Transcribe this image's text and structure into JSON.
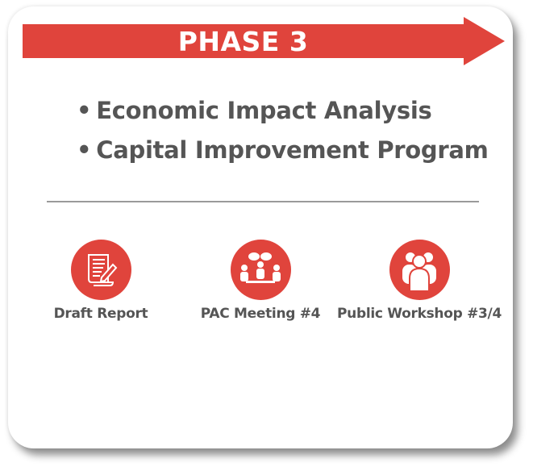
{
  "colors": {
    "accent": "#e0443c",
    "text": "#555555"
  },
  "header": {
    "title": "PHASE 3"
  },
  "bullets": [
    "Economic Impact Analysis",
    "Capital Improvement Program"
  ],
  "bullet_symbol": "•",
  "milestones": [
    {
      "label": "Draft Report",
      "icon": "document-pen-icon"
    },
    {
      "label": "PAC Meeting #4",
      "icon": "meeting-icon"
    },
    {
      "label": "Public Workshop #3/4",
      "icon": "people-group-icon"
    }
  ]
}
